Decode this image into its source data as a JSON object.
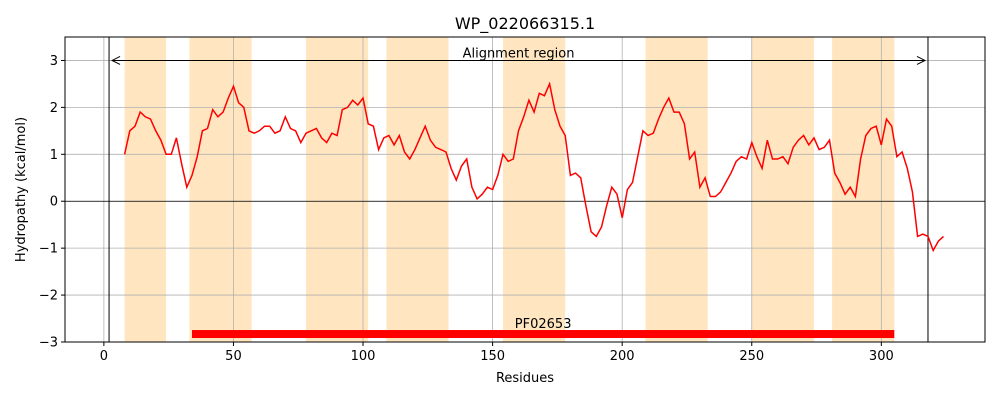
{
  "chart_data": {
    "type": "line",
    "title": "WP_022066315.1",
    "xlabel": "Residues",
    "ylabel": "Hydropathy (kcal/mol)",
    "xlim": [
      -15,
      340
    ],
    "ylim": [
      -3,
      3.5
    ],
    "x_ticks": [
      0,
      50,
      100,
      150,
      200,
      250,
      300
    ],
    "y_ticks": [
      -3,
      -2,
      -1,
      0,
      1,
      2,
      3
    ],
    "grid": true,
    "colors": {
      "line": "#ff0000",
      "band": "#ffe6c0",
      "domain": "#ff0000"
    },
    "tm_regions": [
      [
        8,
        24
      ],
      [
        33,
        57
      ],
      [
        78,
        102
      ],
      [
        109,
        133
      ],
      [
        154,
        178
      ],
      [
        209,
        233
      ],
      [
        250,
        274
      ],
      [
        281,
        305
      ]
    ],
    "alignment": {
      "label": "Alignment region",
      "start": 2,
      "end": 318,
      "y": 3
    },
    "domain": {
      "label": "PF02653",
      "start": 34,
      "end": 305,
      "y": -2.83
    },
    "series": [
      {
        "x": [
          8,
          10,
          12,
          14,
          16,
          18,
          20,
          22,
          24,
          26,
          28,
          30,
          32,
          34,
          36,
          38,
          40,
          42,
          44,
          46,
          48,
          50,
          52,
          54,
          56,
          58,
          60,
          62,
          64,
          66,
          68,
          70,
          72,
          74,
          76,
          78,
          80,
          82,
          84,
          86,
          88,
          90,
          92,
          94,
          96,
          98,
          100,
          102,
          104,
          106,
          108,
          110,
          112,
          114,
          116,
          118,
          120,
          122,
          124,
          126,
          128,
          130,
          132,
          134,
          136,
          138,
          140,
          142,
          144,
          146,
          148,
          150,
          152,
          154,
          156,
          158,
          160,
          162,
          164,
          166,
          168,
          170,
          172,
          174,
          176,
          178,
          180,
          182,
          184,
          186,
          188,
          190,
          192,
          194,
          196,
          198,
          200,
          202,
          204,
          206,
          208,
          210,
          212,
          214,
          216,
          218,
          220,
          222,
          224,
          226,
          228,
          230,
          232,
          234,
          236,
          238,
          240,
          242,
          244,
          246,
          248,
          250,
          252,
          254,
          256,
          258,
          260,
          262,
          264,
          266,
          268,
          270,
          272,
          274,
          276,
          278,
          280,
          282,
          284,
          286,
          288,
          290,
          292,
          294,
          296,
          298,
          300,
          302,
          304,
          306,
          308,
          310,
          312,
          314,
          316,
          318,
          320,
          322,
          324
        ],
        "y": [
          1.0,
          1.5,
          1.6,
          1.9,
          1.8,
          1.75,
          1.5,
          1.3,
          1.0,
          1.0,
          1.35,
          0.8,
          0.3,
          0.55,
          0.95,
          1.5,
          1.55,
          1.95,
          1.8,
          1.9,
          2.2,
          2.45,
          2.1,
          2.0,
          1.5,
          1.45,
          1.5,
          1.6,
          1.6,
          1.45,
          1.5,
          1.8,
          1.55,
          1.5,
          1.25,
          1.45,
          1.5,
          1.55,
          1.35,
          1.25,
          1.45,
          1.4,
          1.95,
          2.0,
          2.15,
          2.05,
          2.2,
          1.65,
          1.6,
          1.1,
          1.35,
          1.4,
          1.2,
          1.4,
          1.05,
          0.9,
          1.1,
          1.35,
          1.6,
          1.3,
          1.15,
          1.1,
          1.05,
          0.7,
          0.45,
          0.75,
          0.9,
          0.3,
          0.05,
          0.15,
          0.3,
          0.25,
          0.55,
          1.0,
          0.85,
          0.9,
          1.5,
          1.8,
          2.15,
          1.9,
          2.3,
          2.25,
          2.5,
          1.95,
          1.6,
          1.4,
          0.55,
          0.6,
          0.5,
          -0.1,
          -0.65,
          -0.75,
          -0.55,
          -0.1,
          0.3,
          0.15,
          -0.35,
          0.25,
          0.4,
          0.95,
          1.5,
          1.4,
          1.45,
          1.75,
          2.0,
          2.2,
          1.9,
          1.9,
          1.65,
          0.9,
          1.05,
          0.3,
          0.5,
          0.1,
          0.1,
          0.2,
          0.4,
          0.6,
          0.85,
          0.95,
          0.9,
          1.25,
          0.95,
          0.7,
          1.3,
          0.9,
          0.9,
          0.95,
          0.8,
          1.15,
          1.3,
          1.4,
          1.2,
          1.35,
          1.1,
          1.15,
          1.3,
          0.6,
          0.4,
          0.15,
          0.3,
          0.1,
          0.9,
          1.4,
          1.55,
          1.6,
          1.2,
          1.75,
          1.6,
          0.95,
          1.05,
          0.7,
          0.2,
          -0.75,
          -0.7,
          -0.75,
          -1.05,
          -0.85,
          -0.75
        ]
      }
    ]
  }
}
